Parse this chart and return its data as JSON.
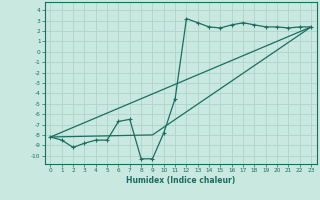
{
  "xlabel": "Humidex (Indice chaleur)",
  "bg_color": "#c8e8e0",
  "grid_color": "#b0d4cc",
  "line_color": "#1a6e60",
  "xlim": [
    -0.5,
    23.5
  ],
  "ylim": [
    -10.8,
    4.8
  ],
  "xticks": [
    0,
    1,
    2,
    3,
    4,
    5,
    6,
    7,
    8,
    9,
    10,
    11,
    12,
    13,
    14,
    15,
    16,
    17,
    18,
    19,
    20,
    21,
    22,
    23
  ],
  "yticks": [
    4,
    3,
    2,
    1,
    0,
    -1,
    -2,
    -3,
    -4,
    -5,
    -6,
    -7,
    -8,
    -9,
    -10
  ],
  "curve1_x": [
    0,
    1,
    2,
    3,
    4,
    5,
    6,
    7,
    8,
    9,
    10,
    11,
    12,
    13,
    14,
    15,
    16,
    17,
    18,
    19,
    20,
    21,
    22,
    23
  ],
  "curve1_y": [
    -8.2,
    -8.5,
    -9.2,
    -8.8,
    -8.5,
    -8.5,
    -6.7,
    -6.5,
    -10.3,
    -10.3,
    -7.8,
    -4.5,
    3.2,
    2.8,
    2.4,
    2.3,
    2.6,
    2.8,
    2.6,
    2.4,
    2.4,
    2.3,
    2.4,
    2.4
  ],
  "trend1_x": [
    0,
    23
  ],
  "trend1_y": [
    -8.2,
    2.4
  ],
  "trend2_x": [
    0,
    9,
    23
  ],
  "trend2_y": [
    -8.2,
    -8.0,
    2.4
  ]
}
